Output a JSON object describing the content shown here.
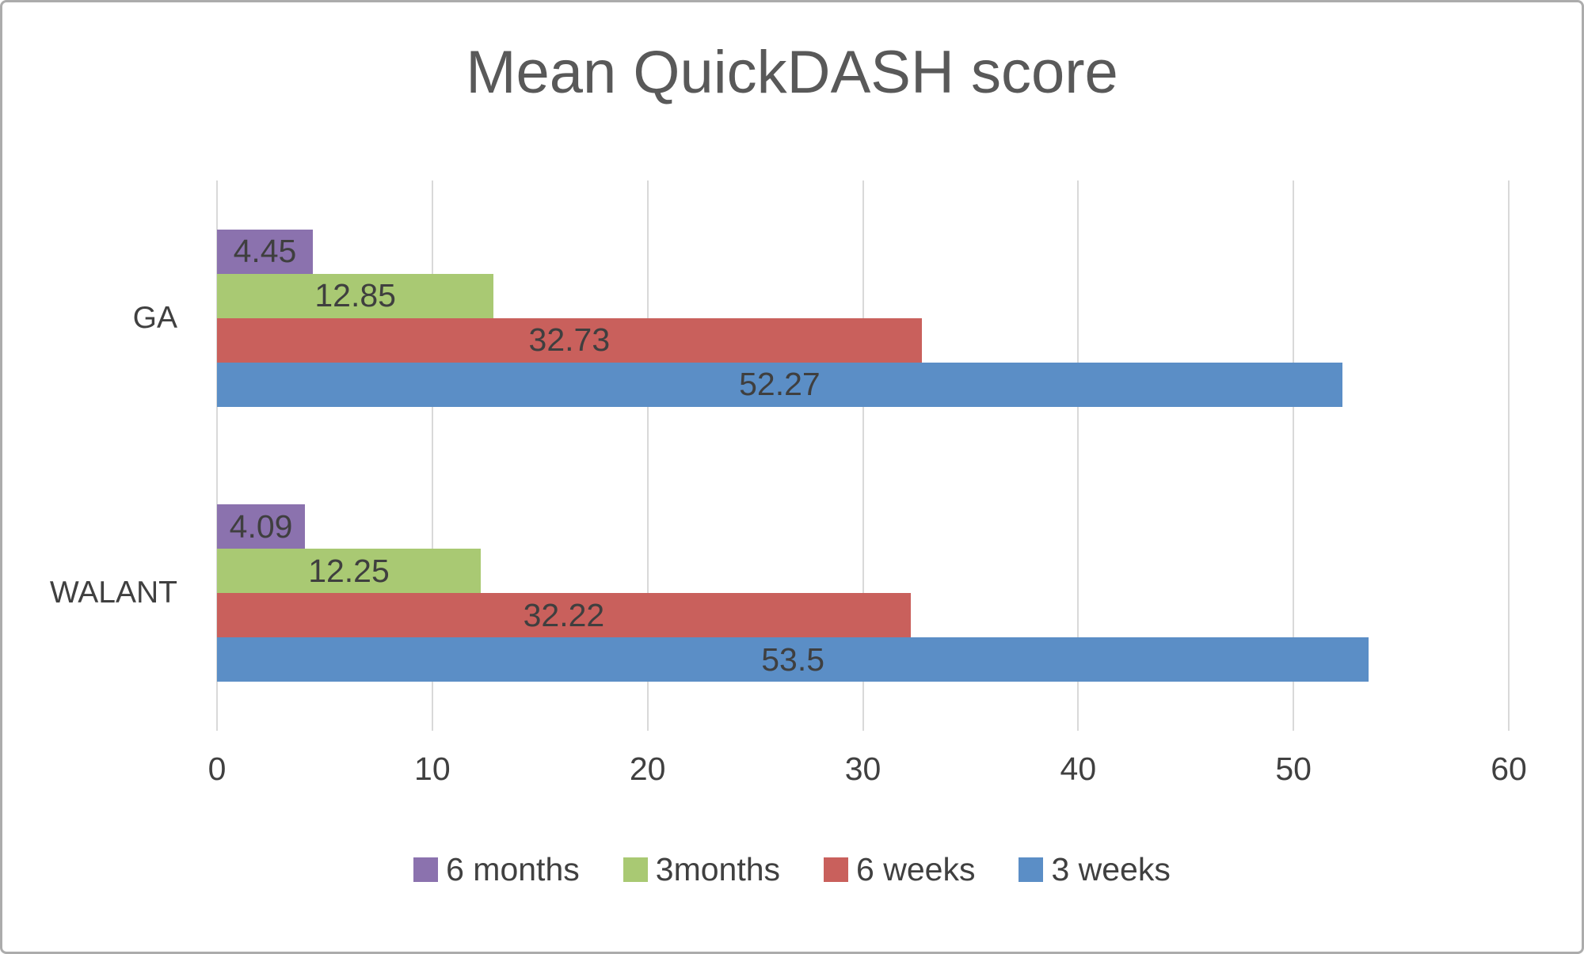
{
  "title": "Mean QuickDASH score",
  "colors": {
    "title_text": "#595959",
    "axis_text": "#404040",
    "data_label_text": "#3f3f3f",
    "gridline": "#d9d9d9",
    "frame_border": "#acacac",
    "series_purple": "#8b72ae",
    "series_green": "#a9c973",
    "series_red": "#c9605c",
    "series_blue": "#5b8ec6"
  },
  "chart_data": {
    "type": "bar",
    "orientation": "horizontal",
    "title": "Mean QuickDASH score",
    "xlabel": "",
    "ylabel": "",
    "categories": [
      "GA",
      "WALANT"
    ],
    "series": [
      {
        "name": "6 months",
        "color": "#8b72ae",
        "values": [
          4.45,
          4.09
        ]
      },
      {
        "name": "3months",
        "color": "#a9c973",
        "values": [
          12.85,
          12.25
        ]
      },
      {
        "name": "6 weeks",
        "color": "#c9605c",
        "values": [
          32.73,
          32.22
        ]
      },
      {
        "name": "3 weeks",
        "color": "#5b8ec6",
        "values": [
          52.27,
          53.5
        ]
      }
    ],
    "data_labels": {
      "GA": {
        "6 months": "4.45",
        "3months": "12.85",
        "6 weeks": "32.73",
        "3 weeks": "52.27"
      },
      "WALANT": {
        "6 months": "4.09",
        "3months": "12.25",
        "6 weeks": "32.22",
        "3 weeks": "53.5"
      }
    },
    "xlim": [
      0,
      60
    ],
    "xticks": [
      0,
      10,
      20,
      30,
      40,
      50,
      60
    ],
    "grid": true,
    "legend_position": "bottom",
    "legend_entries": [
      "6 months",
      "3months",
      "6 weeks",
      "3 weeks"
    ]
  }
}
